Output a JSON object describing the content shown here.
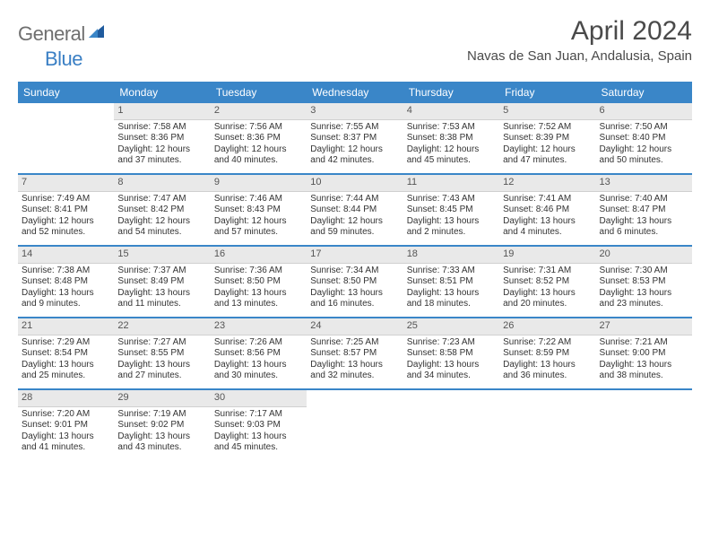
{
  "brand": {
    "general": "General",
    "blue": "Blue"
  },
  "title": {
    "month": "April 2024",
    "location": "Navas de San Juan, Andalusia, Spain"
  },
  "colors": {
    "accent": "#3a86c8",
    "daynum_bg": "#e9e9e9",
    "text": "#333333",
    "brand_gray": "#6f6f6f",
    "brand_blue": "#3a7fc4"
  },
  "dow": [
    "Sunday",
    "Monday",
    "Tuesday",
    "Wednesday",
    "Thursday",
    "Friday",
    "Saturday"
  ],
  "weeks": [
    [
      {
        "num": "",
        "lines": []
      },
      {
        "num": "1",
        "lines": [
          "Sunrise: 7:58 AM",
          "Sunset: 8:36 PM",
          "Daylight: 12 hours",
          "and 37 minutes."
        ]
      },
      {
        "num": "2",
        "lines": [
          "Sunrise: 7:56 AM",
          "Sunset: 8:36 PM",
          "Daylight: 12 hours",
          "and 40 minutes."
        ]
      },
      {
        "num": "3",
        "lines": [
          "Sunrise: 7:55 AM",
          "Sunset: 8:37 PM",
          "Daylight: 12 hours",
          "and 42 minutes."
        ]
      },
      {
        "num": "4",
        "lines": [
          "Sunrise: 7:53 AM",
          "Sunset: 8:38 PM",
          "Daylight: 12 hours",
          "and 45 minutes."
        ]
      },
      {
        "num": "5",
        "lines": [
          "Sunrise: 7:52 AM",
          "Sunset: 8:39 PM",
          "Daylight: 12 hours",
          "and 47 minutes."
        ]
      },
      {
        "num": "6",
        "lines": [
          "Sunrise: 7:50 AM",
          "Sunset: 8:40 PM",
          "Daylight: 12 hours",
          "and 50 minutes."
        ]
      }
    ],
    [
      {
        "num": "7",
        "lines": [
          "Sunrise: 7:49 AM",
          "Sunset: 8:41 PM",
          "Daylight: 12 hours",
          "and 52 minutes."
        ]
      },
      {
        "num": "8",
        "lines": [
          "Sunrise: 7:47 AM",
          "Sunset: 8:42 PM",
          "Daylight: 12 hours",
          "and 54 minutes."
        ]
      },
      {
        "num": "9",
        "lines": [
          "Sunrise: 7:46 AM",
          "Sunset: 8:43 PM",
          "Daylight: 12 hours",
          "and 57 minutes."
        ]
      },
      {
        "num": "10",
        "lines": [
          "Sunrise: 7:44 AM",
          "Sunset: 8:44 PM",
          "Daylight: 12 hours",
          "and 59 minutes."
        ]
      },
      {
        "num": "11",
        "lines": [
          "Sunrise: 7:43 AM",
          "Sunset: 8:45 PM",
          "Daylight: 13 hours",
          "and 2 minutes."
        ]
      },
      {
        "num": "12",
        "lines": [
          "Sunrise: 7:41 AM",
          "Sunset: 8:46 PM",
          "Daylight: 13 hours",
          "and 4 minutes."
        ]
      },
      {
        "num": "13",
        "lines": [
          "Sunrise: 7:40 AM",
          "Sunset: 8:47 PM",
          "Daylight: 13 hours",
          "and 6 minutes."
        ]
      }
    ],
    [
      {
        "num": "14",
        "lines": [
          "Sunrise: 7:38 AM",
          "Sunset: 8:48 PM",
          "Daylight: 13 hours",
          "and 9 minutes."
        ]
      },
      {
        "num": "15",
        "lines": [
          "Sunrise: 7:37 AM",
          "Sunset: 8:49 PM",
          "Daylight: 13 hours",
          "and 11 minutes."
        ]
      },
      {
        "num": "16",
        "lines": [
          "Sunrise: 7:36 AM",
          "Sunset: 8:50 PM",
          "Daylight: 13 hours",
          "and 13 minutes."
        ]
      },
      {
        "num": "17",
        "lines": [
          "Sunrise: 7:34 AM",
          "Sunset: 8:50 PM",
          "Daylight: 13 hours",
          "and 16 minutes."
        ]
      },
      {
        "num": "18",
        "lines": [
          "Sunrise: 7:33 AM",
          "Sunset: 8:51 PM",
          "Daylight: 13 hours",
          "and 18 minutes."
        ]
      },
      {
        "num": "19",
        "lines": [
          "Sunrise: 7:31 AM",
          "Sunset: 8:52 PM",
          "Daylight: 13 hours",
          "and 20 minutes."
        ]
      },
      {
        "num": "20",
        "lines": [
          "Sunrise: 7:30 AM",
          "Sunset: 8:53 PM",
          "Daylight: 13 hours",
          "and 23 minutes."
        ]
      }
    ],
    [
      {
        "num": "21",
        "lines": [
          "Sunrise: 7:29 AM",
          "Sunset: 8:54 PM",
          "Daylight: 13 hours",
          "and 25 minutes."
        ]
      },
      {
        "num": "22",
        "lines": [
          "Sunrise: 7:27 AM",
          "Sunset: 8:55 PM",
          "Daylight: 13 hours",
          "and 27 minutes."
        ]
      },
      {
        "num": "23",
        "lines": [
          "Sunrise: 7:26 AM",
          "Sunset: 8:56 PM",
          "Daylight: 13 hours",
          "and 30 minutes."
        ]
      },
      {
        "num": "24",
        "lines": [
          "Sunrise: 7:25 AM",
          "Sunset: 8:57 PM",
          "Daylight: 13 hours",
          "and 32 minutes."
        ]
      },
      {
        "num": "25",
        "lines": [
          "Sunrise: 7:23 AM",
          "Sunset: 8:58 PM",
          "Daylight: 13 hours",
          "and 34 minutes."
        ]
      },
      {
        "num": "26",
        "lines": [
          "Sunrise: 7:22 AM",
          "Sunset: 8:59 PM",
          "Daylight: 13 hours",
          "and 36 minutes."
        ]
      },
      {
        "num": "27",
        "lines": [
          "Sunrise: 7:21 AM",
          "Sunset: 9:00 PM",
          "Daylight: 13 hours",
          "and 38 minutes."
        ]
      }
    ],
    [
      {
        "num": "28",
        "lines": [
          "Sunrise: 7:20 AM",
          "Sunset: 9:01 PM",
          "Daylight: 13 hours",
          "and 41 minutes."
        ]
      },
      {
        "num": "29",
        "lines": [
          "Sunrise: 7:19 AM",
          "Sunset: 9:02 PM",
          "Daylight: 13 hours",
          "and 43 minutes."
        ]
      },
      {
        "num": "30",
        "lines": [
          "Sunrise: 7:17 AM",
          "Sunset: 9:03 PM",
          "Daylight: 13 hours",
          "and 45 minutes."
        ]
      },
      {
        "num": "",
        "lines": []
      },
      {
        "num": "",
        "lines": []
      },
      {
        "num": "",
        "lines": []
      },
      {
        "num": "",
        "lines": []
      }
    ]
  ]
}
